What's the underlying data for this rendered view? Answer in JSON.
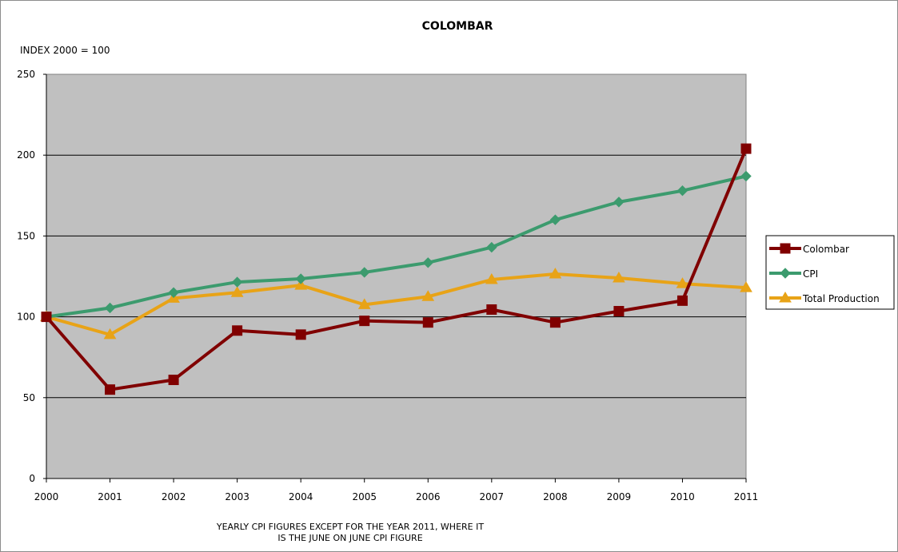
{
  "chart_data": {
    "type": "line",
    "title": "COLOMBAR",
    "ylabel": "INDEX 2000 = 100",
    "xlabel": "",
    "note_lines": [
      "YEARLY CPI FIGURES EXCEPT FOR THE YEAR 2011, WHERE IT",
      "IS THE JUNE ON JUNE CPI FIGURE"
    ],
    "x": [
      "2000",
      "2001",
      "2002",
      "2003",
      "2004",
      "2005",
      "2006",
      "2007",
      "2008",
      "2009",
      "2010",
      "2011"
    ],
    "ylim": [
      0,
      250
    ],
    "yticks": [
      0,
      50,
      100,
      150,
      200,
      250
    ],
    "grid": true,
    "legend_position": "right",
    "plot_background": "#c0c0c0",
    "series": [
      {
        "name": "Colombar",
        "color": "#800000",
        "marker": "square",
        "values": [
          100,
          55,
          61,
          91.5,
          89,
          97.5,
          96.5,
          104.5,
          96.5,
          103.5,
          110,
          204
        ]
      },
      {
        "name": "CPI",
        "color": "#3c9b6e",
        "marker": "diamond",
        "values": [
          100,
          105.5,
          115,
          121.5,
          123.5,
          127.5,
          133.5,
          143,
          160,
          171,
          178,
          187
        ]
      },
      {
        "name": "Total Production",
        "color": "#e8a317",
        "marker": "triangle",
        "values": [
          100,
          89,
          111.5,
          115,
          119.5,
          107.5,
          112.5,
          123,
          126.5,
          124,
          120.5,
          118
        ]
      }
    ]
  }
}
